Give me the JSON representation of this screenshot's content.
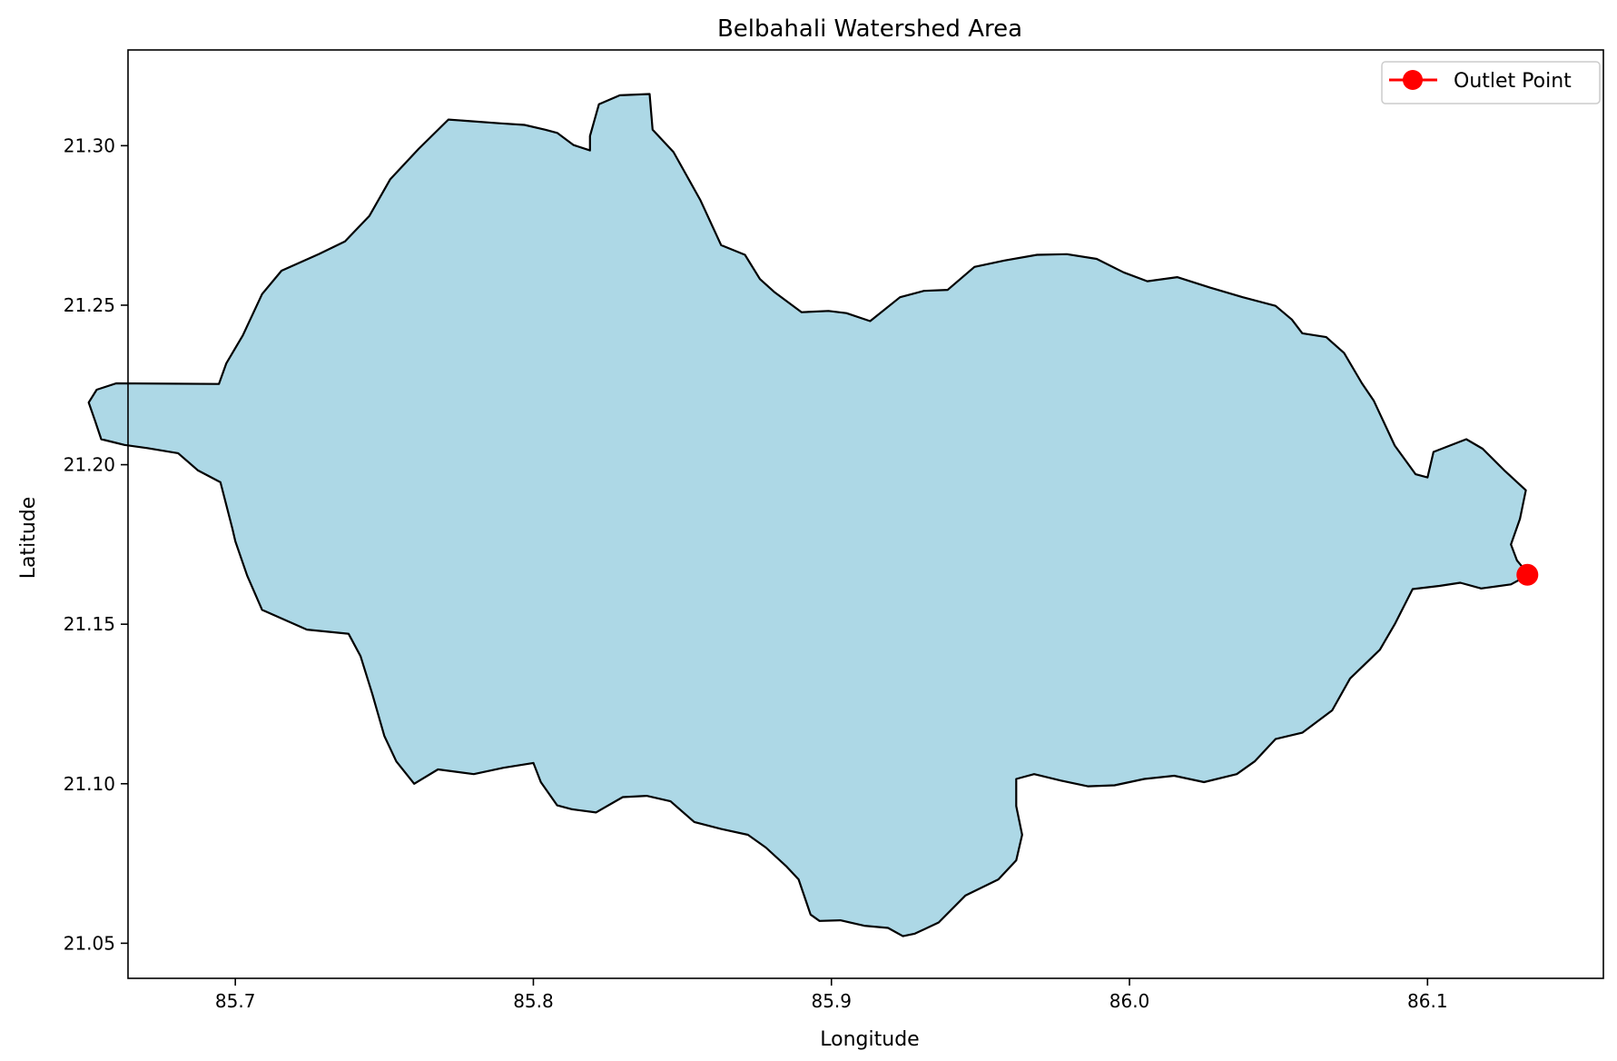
{
  "chart_data": {
    "type": "map",
    "title": "Belbahali Watershed Area",
    "xlabel": "Longitude",
    "ylabel": "Latitude",
    "xlim": [
      85.664,
      86.159
    ],
    "ylim": [
      21.039,
      21.33
    ],
    "x_ticks": [
      85.7,
      85.8,
      85.9,
      86.0,
      86.1
    ],
    "x_tick_labels": [
      "85.7",
      "85.8",
      "85.9",
      "86.0",
      "86.1"
    ],
    "y_ticks": [
      21.05,
      21.1,
      21.15,
      21.2,
      21.25,
      21.3
    ],
    "y_tick_labels": [
      "21.05",
      "21.10",
      "21.15",
      "21.20",
      "21.25",
      "21.30"
    ],
    "grid": false,
    "legend_position": "top-right",
    "legend": [
      {
        "label": "Outlet Point",
        "color": "#ff0000",
        "marker": "circle"
      }
    ],
    "watershed": {
      "fill_color": "#add8e6",
      "edge_color": "#000000",
      "boundary": [
        [
          85.6945,
          21.2253
        ],
        [
          85.697,
          21.2318
        ],
        [
          85.7025,
          21.2405
        ],
        [
          85.709,
          21.2535
        ],
        [
          85.7155,
          21.2608
        ],
        [
          85.728,
          21.266
        ],
        [
          85.7368,
          21.27
        ],
        [
          85.745,
          21.278
        ],
        [
          85.752,
          21.2895
        ],
        [
          85.7615,
          21.299
        ],
        [
          85.7715,
          21.3082
        ],
        [
          85.789,
          21.307
        ],
        [
          85.797,
          21.3065
        ],
        [
          85.804,
          21.305
        ],
        [
          85.808,
          21.304
        ],
        [
          85.8135,
          21.3002
        ],
        [
          85.819,
          21.2985
        ],
        [
          85.819,
          21.303
        ],
        [
          85.822,
          21.313
        ],
        [
          85.829,
          21.3158
        ],
        [
          85.839,
          21.3162
        ],
        [
          85.84,
          21.305
        ],
        [
          85.847,
          21.298
        ],
        [
          85.856,
          21.283
        ],
        [
          85.863,
          21.2688
        ],
        [
          85.871,
          21.2658
        ],
        [
          85.876,
          21.2582
        ],
        [
          85.881,
          21.254
        ],
        [
          85.89,
          21.2478
        ],
        [
          85.899,
          21.2482
        ],
        [
          85.905,
          21.2475
        ],
        [
          85.913,
          21.245
        ],
        [
          85.923,
          21.2525
        ],
        [
          85.931,
          21.2545
        ],
        [
          85.939,
          21.2548
        ],
        [
          85.948,
          21.262
        ],
        [
          85.958,
          21.264
        ],
        [
          85.969,
          21.2658
        ],
        [
          85.979,
          21.266
        ],
        [
          85.989,
          21.2645
        ],
        [
          85.998,
          21.2603
        ],
        [
          86.006,
          21.2575
        ],
        [
          86.016,
          21.2588
        ],
        [
          86.027,
          21.2555
        ],
        [
          86.038,
          21.2525
        ],
        [
          86.049,
          21.2498
        ],
        [
          86.0545,
          21.2455
        ],
        [
          86.058,
          21.2412
        ],
        [
          86.066,
          21.24
        ],
        [
          86.072,
          21.235
        ],
        [
          86.078,
          21.2255
        ],
        [
          86.082,
          21.22
        ],
        [
          86.089,
          21.206
        ],
        [
          86.096,
          21.197
        ],
        [
          86.1,
          21.196
        ],
        [
          86.102,
          21.204
        ],
        [
          86.113,
          21.208
        ],
        [
          86.1185,
          21.205
        ],
        [
          86.126,
          21.198
        ],
        [
          86.133,
          21.192
        ],
        [
          86.131,
          21.183
        ],
        [
          86.128,
          21.175
        ],
        [
          86.13,
          21.17
        ],
        [
          86.134,
          21.1655
        ],
        [
          86.128,
          21.1625
        ],
        [
          86.118,
          21.1612
        ],
        [
          86.111,
          21.163
        ],
        [
          86.104,
          21.162
        ],
        [
          86.095,
          21.161
        ],
        [
          86.089,
          21.15
        ],
        [
          86.084,
          21.142
        ],
        [
          86.074,
          21.133
        ],
        [
          86.068,
          21.123
        ],
        [
          86.058,
          21.116
        ],
        [
          86.049,
          21.114
        ],
        [
          86.042,
          21.107
        ],
        [
          86.036,
          21.103
        ],
        [
          86.025,
          21.1005
        ],
        [
          86.015,
          21.1025
        ],
        [
          86.005,
          21.1015
        ],
        [
          85.995,
          21.0995
        ],
        [
          85.986,
          21.0992
        ],
        [
          85.977,
          21.101
        ],
        [
          85.968,
          21.103
        ],
        [
          85.962,
          21.1015
        ],
        [
          85.962,
          21.093
        ],
        [
          85.964,
          21.084
        ],
        [
          85.962,
          21.076
        ],
        [
          85.956,
          21.07
        ],
        [
          85.945,
          21.065
        ],
        [
          85.936,
          21.0565
        ],
        [
          85.928,
          21.053
        ],
        [
          85.924,
          21.0522
        ],
        [
          85.919,
          21.0548
        ],
        [
          85.911,
          21.0555
        ],
        [
          85.903,
          21.0572
        ],
        [
          85.896,
          21.057
        ],
        [
          85.893,
          21.059
        ],
        [
          85.889,
          21.07
        ],
        [
          85.885,
          21.074
        ],
        [
          85.878,
          21.08
        ],
        [
          85.872,
          21.084
        ],
        [
          85.863,
          21.0858
        ],
        [
          85.854,
          21.088
        ],
        [
          85.846,
          21.0945
        ],
        [
          85.838,
          21.0962
        ],
        [
          85.83,
          21.0958
        ],
        [
          85.821,
          21.091
        ],
        [
          85.813,
          21.092
        ],
        [
          85.808,
          21.0932
        ],
        [
          85.8025,
          21.1005
        ],
        [
          85.8,
          21.1065
        ],
        [
          85.79,
          21.105
        ],
        [
          85.78,
          21.103
        ],
        [
          85.768,
          21.1045
        ],
        [
          85.76,
          21.1
        ],
        [
          85.754,
          21.107
        ],
        [
          85.75,
          21.115
        ],
        [
          85.746,
          21.128
        ],
        [
          85.742,
          21.14
        ],
        [
          85.738,
          21.147
        ],
        [
          85.724,
          21.1483
        ],
        [
          85.709,
          21.1545
        ],
        [
          85.704,
          21.1652
        ],
        [
          85.7,
          21.176
        ],
        [
          85.699,
          21.18
        ],
        [
          85.695,
          21.1945
        ],
        [
          85.6875,
          21.1982
        ],
        [
          85.6808,
          21.2036
        ],
        [
          85.6705,
          21.2052
        ],
        [
          85.6628,
          21.2062
        ],
        [
          85.655,
          21.208
        ],
        [
          85.653,
          21.2136
        ],
        [
          85.6508,
          21.2195
        ],
        [
          85.6535,
          21.2235
        ],
        [
          85.66,
          21.2255
        ]
      ]
    },
    "outlet_point": {
      "lon": 86.1335,
      "lat": 21.1655,
      "color": "#ff0000"
    }
  }
}
